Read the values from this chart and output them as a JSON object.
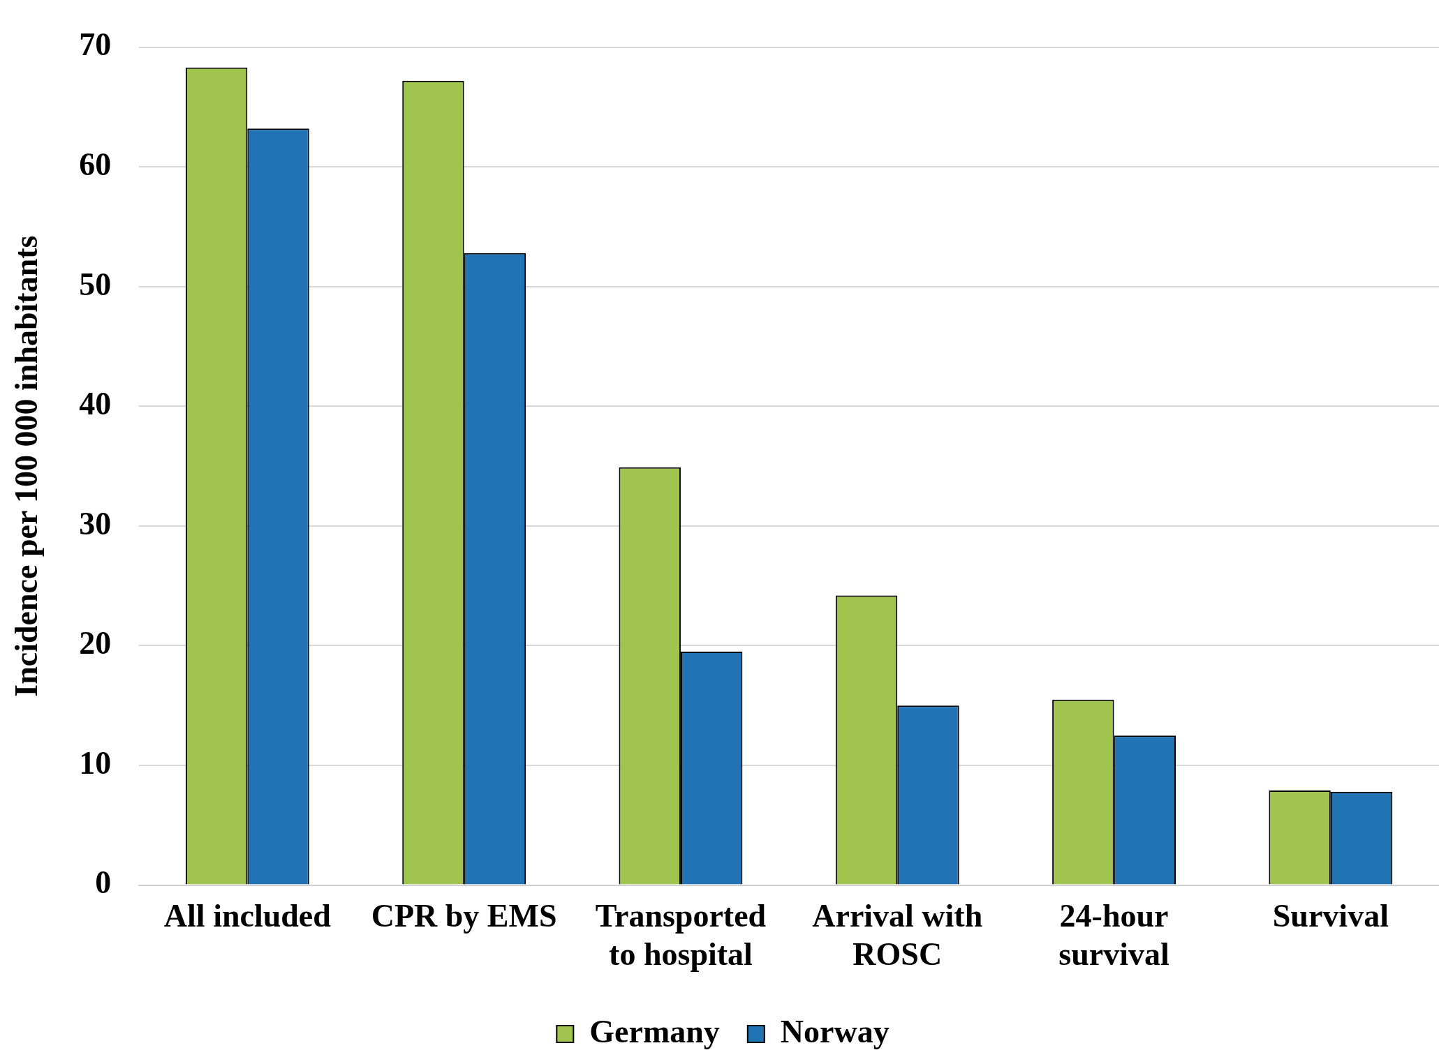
{
  "chart_data": {
    "type": "bar",
    "ylabel": "Incidence per 100 000 inhabitants",
    "categories": [
      "All included",
      "CPR by EMS",
      "Transported to hospital",
      "Arrival with ROSC",
      "24-hour survival",
      "Survival"
    ],
    "series": [
      {
        "name": "Germany",
        "color": "#a1c44e",
        "values": [
          68.3,
          67.2,
          34.9,
          24.2,
          15.5,
          7.9
        ]
      },
      {
        "name": "Norway",
        "color": "#2273b4",
        "values": [
          63.2,
          52.8,
          19.5,
          15.0,
          12.5,
          7.8
        ]
      }
    ],
    "ylim": [
      0,
      70
    ],
    "yticks": [
      0,
      10,
      20,
      30,
      40,
      50,
      60,
      70
    ],
    "grid": "y",
    "legend": "bottom"
  }
}
